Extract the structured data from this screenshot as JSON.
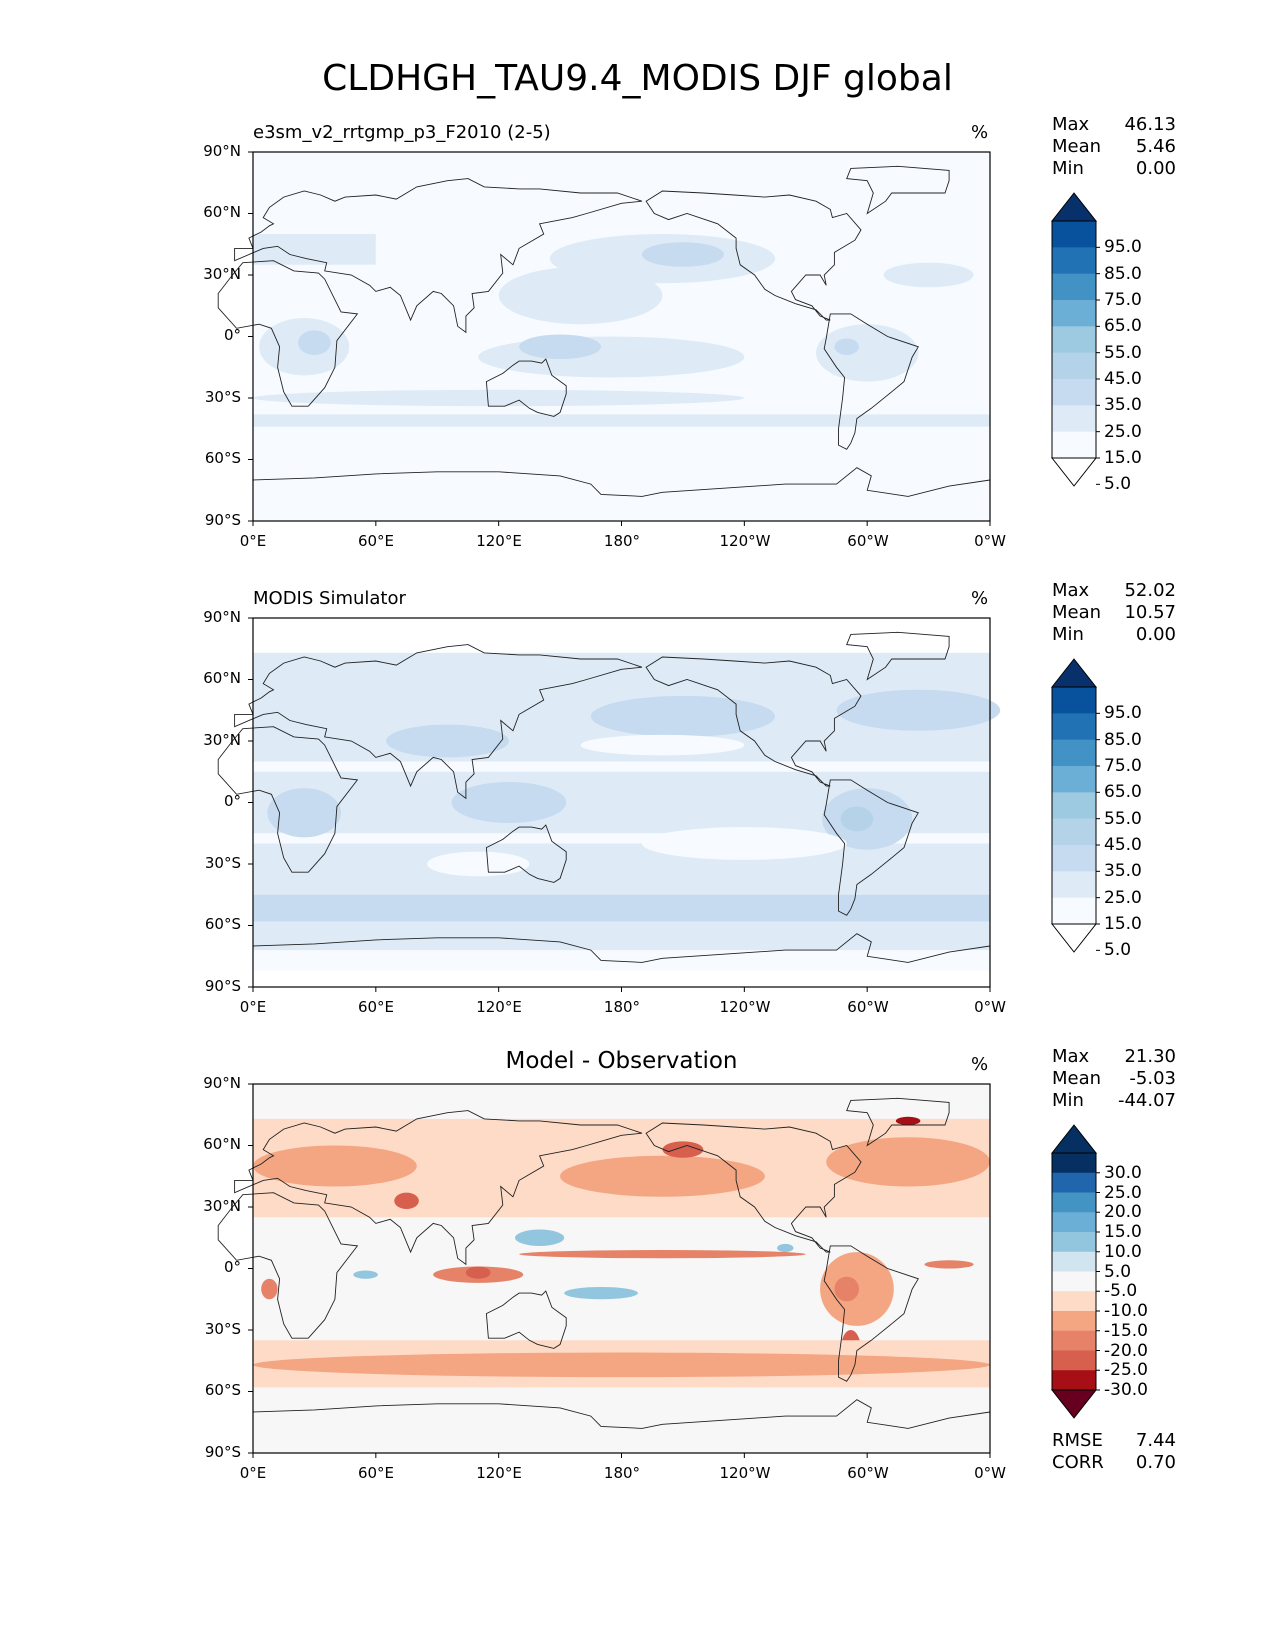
{
  "figure": {
    "title": "CLDHGH_TAU9.4_MODIS DJF global"
  },
  "colors": {
    "blues": [
      "#f7fbff",
      "#deebf7",
      "#c6dbef",
      "#b4d3e9",
      "#9ecae1",
      "#6baed6",
      "#4292c6",
      "#2171b5",
      "#08519c",
      "#08306b"
    ],
    "diverging": [
      "#67001f",
      "#a50f15",
      "#d6604d",
      "#e58267",
      "#f4a582",
      "#fddbc7",
      "#f7f7f7",
      "#d1e5f0",
      "#92c5de",
      "#6baed6",
      "#4393c3",
      "#2166ac",
      "#053061"
    ],
    "land_outline": "#222222"
  },
  "panels": [
    {
      "title": "e3sm_v2_rrtgmp_p3_F2010 (2-5)",
      "unit": "%",
      "stats": {
        "max_label": "Max",
        "max": "46.13",
        "mean_label": "Mean",
        "mean": "5.46",
        "min_label": "Min",
        "min": "0.00"
      },
      "colorbar": {
        "ticks": [
          "95.0",
          "85.0",
          "75.0",
          "65.0",
          "55.0",
          "45.0",
          "35.0",
          "25.0",
          "15.0",
          "5.0"
        ]
      }
    },
    {
      "title": "MODIS Simulator",
      "unit": "%",
      "stats": {
        "max_label": "Max",
        "max": "52.02",
        "mean_label": "Mean",
        "mean": "10.57",
        "min_label": "Min",
        "min": "0.00"
      },
      "colorbar": {
        "ticks": [
          "95.0",
          "85.0",
          "75.0",
          "65.0",
          "55.0",
          "45.0",
          "35.0",
          "25.0",
          "15.0",
          "5.0"
        ]
      }
    },
    {
      "title": "Model - Observation",
      "unit": "%",
      "stats": {
        "max_label": "Max",
        "max": "21.30",
        "mean_label": "Mean",
        "mean": "-5.03",
        "min_label": "Min",
        "min": "-44.07"
      },
      "colorbar": {
        "ticks": [
          "30.0",
          "25.0",
          "20.0",
          "15.0",
          "10.0",
          "5.0",
          "-5.0",
          "-10.0",
          "-15.0",
          "-20.0",
          "-25.0",
          "-30.0"
        ]
      },
      "metrics": {
        "rmse_label": "RMSE",
        "rmse": "7.44",
        "corr_label": "CORR",
        "corr": "0.70"
      }
    }
  ],
  "axes": {
    "lat_ticks": [
      "90°N",
      "60°N",
      "30°N",
      "0°",
      "30°S",
      "60°S",
      "90°S"
    ],
    "lon_ticks": [
      "0°E",
      "60°E",
      "120°E",
      "180°",
      "120°W",
      "60°W",
      "0°W"
    ]
  }
}
